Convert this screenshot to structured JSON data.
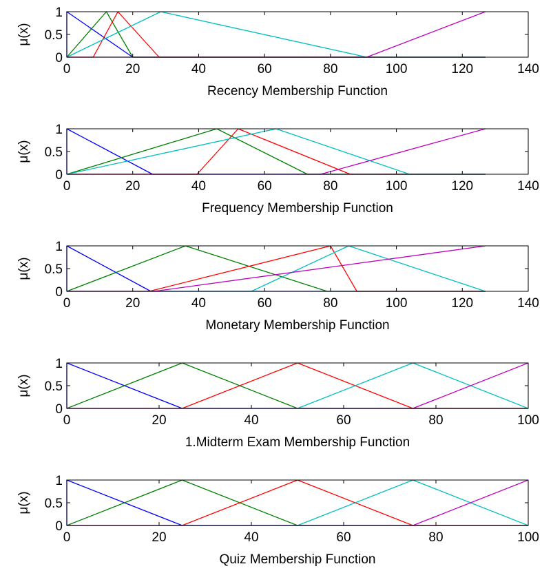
{
  "chart_data": [
    {
      "type": "line",
      "xlabel": "Recency Membership Function",
      "ylabel": "μ(x)",
      "xlim": [
        0,
        140
      ],
      "ylim": [
        0,
        1
      ],
      "xticks": [
        0,
        20,
        40,
        60,
        80,
        100,
        120,
        140
      ],
      "yticks": [
        0,
        0.5,
        1
      ],
      "grid": false,
      "series": [
        {
          "color": "#0000ff",
          "x": [
            0,
            0,
            20,
            127
          ],
          "y": [
            0,
            1,
            0,
            0
          ]
        },
        {
          "color": "#008000",
          "x": [
            0,
            12,
            20,
            127
          ],
          "y": [
            0,
            1,
            0,
            0
          ]
        },
        {
          "color": "#ff0000",
          "x": [
            0,
            8,
            15.5,
            28,
            127
          ],
          "y": [
            0,
            0,
            1,
            0,
            0
          ]
        },
        {
          "color": "#00bfbf",
          "x": [
            0,
            28.5,
            91,
            127
          ],
          "y": [
            0,
            1,
            0,
            0
          ]
        },
        {
          "color": "#bf00bf",
          "x": [
            0,
            91,
            127
          ],
          "y": [
            0,
            0,
            1
          ]
        }
      ]
    },
    {
      "type": "line",
      "xlabel": "Frequency Membership Function",
      "ylabel": "μ(x)",
      "xlim": [
        0,
        140
      ],
      "ylim": [
        0,
        1
      ],
      "xticks": [
        0,
        20,
        40,
        60,
        80,
        100,
        120,
        140
      ],
      "yticks": [
        0,
        0.5,
        1
      ],
      "grid": false,
      "series": [
        {
          "color": "#0000ff",
          "x": [
            0,
            0,
            26,
            127
          ],
          "y": [
            0,
            1,
            0,
            0
          ]
        },
        {
          "color": "#008000",
          "x": [
            0,
            45.5,
            73,
            127
          ],
          "y": [
            0,
            1,
            0,
            0
          ]
        },
        {
          "color": "#ff0000",
          "x": [
            0,
            39.5,
            52,
            86,
            127
          ],
          "y": [
            0,
            0,
            1,
            0,
            0
          ]
        },
        {
          "color": "#00bfbf",
          "x": [
            0,
            63.5,
            104,
            127
          ],
          "y": [
            0,
            1,
            0,
            0
          ]
        },
        {
          "color": "#bf00bf",
          "x": [
            0,
            77,
            127
          ],
          "y": [
            0,
            0,
            1
          ]
        }
      ]
    },
    {
      "type": "line",
      "xlabel": "Monetary Membership Function",
      "ylabel": "μ(x)",
      "xlim": [
        0,
        140
      ],
      "ylim": [
        0,
        1
      ],
      "xticks": [
        0,
        20,
        40,
        60,
        80,
        100,
        120,
        140
      ],
      "yticks": [
        0,
        0.5,
        1
      ],
      "grid": false,
      "series": [
        {
          "color": "#0000ff",
          "x": [
            0,
            0,
            25.5,
            127
          ],
          "y": [
            0,
            1,
            0,
            0
          ]
        },
        {
          "color": "#008000",
          "x": [
            0,
            36,
            79,
            127
          ],
          "y": [
            0,
            1,
            0,
            0
          ]
        },
        {
          "color": "#ff0000",
          "x": [
            0,
            25,
            80,
            88,
            127
          ],
          "y": [
            0,
            0,
            1,
            0,
            0
          ]
        },
        {
          "color": "#00bfbf",
          "x": [
            0,
            56,
            85.5,
            127
          ],
          "y": [
            0,
            0,
            1,
            0
          ]
        },
        {
          "color": "#bf00bf",
          "x": [
            0,
            26.5,
            127
          ],
          "y": [
            0,
            0,
            1
          ]
        }
      ]
    },
    {
      "type": "line",
      "xlabel": "1.Midterm Exam Membership Function",
      "ylabel": "μ(x)",
      "xlim": [
        0,
        100
      ],
      "ylim": [
        0,
        1
      ],
      "xticks": [
        0,
        20,
        40,
        60,
        80,
        100
      ],
      "yticks": [
        0,
        0.5,
        1
      ],
      "grid": false,
      "series": [
        {
          "color": "#0000ff",
          "x": [
            0,
            0,
            25,
            100
          ],
          "y": [
            0,
            1,
            0,
            0
          ]
        },
        {
          "color": "#008000",
          "x": [
            0,
            25,
            50,
            100
          ],
          "y": [
            0,
            1,
            0,
            0
          ]
        },
        {
          "color": "#ff0000",
          "x": [
            0,
            25,
            50,
            75,
            100
          ],
          "y": [
            0,
            0,
            1,
            0,
            0
          ]
        },
        {
          "color": "#00bfbf",
          "x": [
            0,
            50,
            75,
            100
          ],
          "y": [
            0,
            0,
            1,
            0
          ]
        },
        {
          "color": "#bf00bf",
          "x": [
            0,
            75,
            100
          ],
          "y": [
            0,
            0,
            1
          ]
        }
      ]
    },
    {
      "type": "line",
      "xlabel": "Quiz Membership Function",
      "ylabel": "μ(x)",
      "xlim": [
        0,
        100
      ],
      "ylim": [
        0,
        1
      ],
      "xticks": [
        0,
        20,
        40,
        60,
        80,
        100
      ],
      "yticks": [
        0,
        0.5,
        1
      ],
      "grid": false,
      "series": [
        {
          "color": "#0000ff",
          "x": [
            0,
            0,
            25,
            100
          ],
          "y": [
            0,
            1,
            0,
            0
          ]
        },
        {
          "color": "#008000",
          "x": [
            0,
            25,
            50,
            100
          ],
          "y": [
            0,
            1,
            0,
            0
          ]
        },
        {
          "color": "#ff0000",
          "x": [
            0,
            25,
            50,
            75,
            100
          ],
          "y": [
            0,
            0,
            1,
            0,
            0
          ]
        },
        {
          "color": "#00bfbf",
          "x": [
            0,
            50,
            75,
            100
          ],
          "y": [
            0,
            0,
            1,
            0
          ]
        },
        {
          "color": "#bf00bf",
          "x": [
            0,
            75,
            100
          ],
          "y": [
            0,
            0,
            1
          ]
        }
      ]
    }
  ]
}
